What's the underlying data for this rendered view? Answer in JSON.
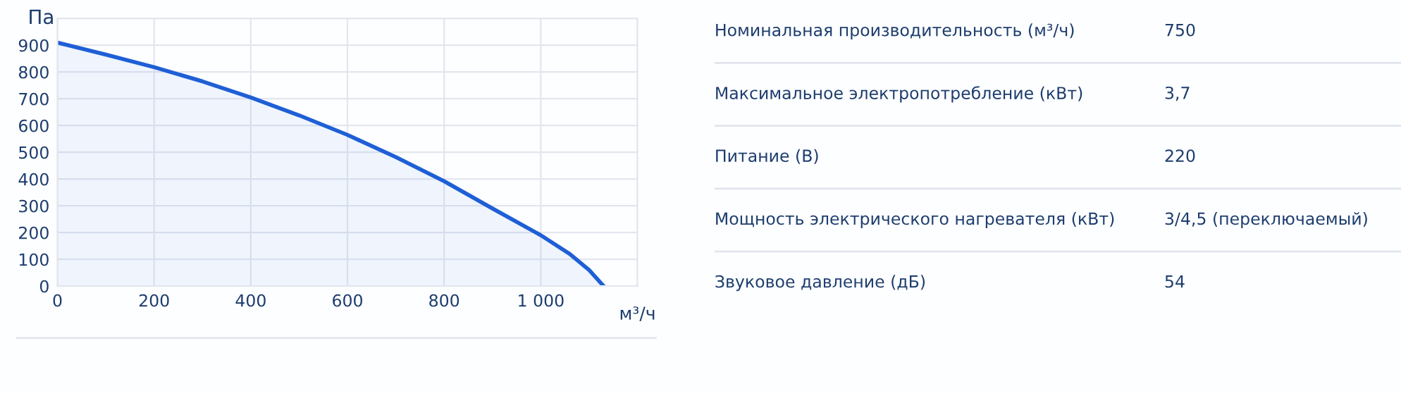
{
  "chart_data": [
    {
      "type": "area",
      "ylabel": "Па",
      "xlabel": "м³/ч",
      "x": [
        0,
        100,
        200,
        300,
        400,
        500,
        600,
        700,
        800,
        900,
        1000,
        1060,
        1100,
        1130
      ],
      "series": [
        {
          "color": "#1f5fd6",
          "values": [
            910,
            865,
            818,
            765,
            705,
            638,
            565,
            482,
            392,
            290,
            190,
            120,
            60,
            0
          ]
        }
      ],
      "xlim": [
        0,
        1200
      ],
      "xticks": [
        0,
        200,
        400,
        600,
        800,
        {
          "value": 1000,
          "label": "1 000"
        },
        {
          "value": 1200,
          "label": null
        }
      ],
      "ylim": [
        0,
        1000
      ],
      "yticks": [
        0,
        100,
        200,
        300,
        400,
        500,
        600,
        700,
        800,
        900,
        {
          "value": 1000,
          "label": null
        }
      ],
      "grid": true,
      "legend": false
    },
    {
      "type": "other",
      "annotations": [
        "Номинальная производительность (м³/ч)",
        "750",
        "Максимальное электропотребление (кВт)",
        "3,7",
        "Питание (В)",
        "220",
        "Мощность электрического нагревателя (кВт)",
        "3/4,5 (переключаемый)",
        "Звуковое давление (дБ)",
        "54"
      ]
    }
  ]
}
